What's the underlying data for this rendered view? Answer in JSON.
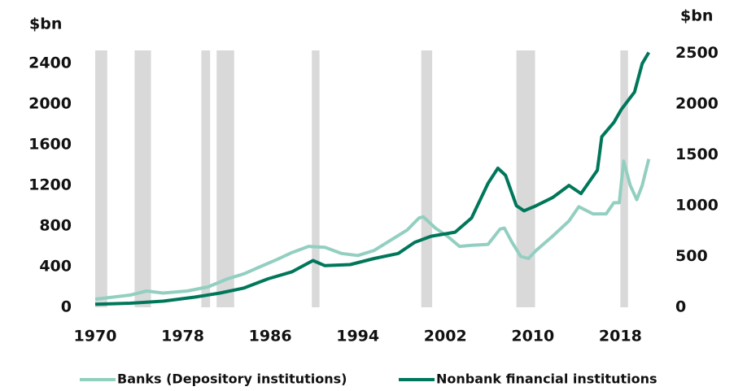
{
  "chart_data": {
    "type": "line",
    "y_label": "$bn",
    "y2_label": "$bn",
    "xlim": [
      1970,
      2020.8
    ],
    "xticks": [
      1970,
      1978,
      1986,
      1994,
      2002,
      2010,
      2018
    ],
    "ylim": [
      0,
      2530
    ],
    "yticks": [
      0,
      400,
      800,
      1200,
      1600,
      2000,
      2400
    ],
    "y2lim": [
      0,
      2530
    ],
    "y2ticks": [
      0,
      500,
      1000,
      1500,
      2000,
      2500
    ],
    "shaded_periods": [
      [
        1970,
        1971.1
      ],
      [
        1973.6,
        1975.1
      ],
      [
        1979.7,
        1980.5
      ],
      [
        1981.1,
        1982.7
      ],
      [
        1989.8,
        1990.5
      ],
      [
        1999.8,
        2000.8
      ],
      [
        2008.5,
        2010.2
      ],
      [
        2018,
        2018.7
      ]
    ],
    "shade_color": "#d9d9d9",
    "series": [
      {
        "name": "Banks (Depository institutions)",
        "color": "#93cfc0",
        "x": [
          1970,
          1973.2,
          1974.7,
          1976.2,
          1978.4,
          1980.3,
          1982.1,
          1983.6,
          1985.1,
          1986.6,
          1988,
          1989.5,
          1991,
          1992.5,
          1994,
          1995.5,
          1997,
          1998.5,
          1999.6,
          2000,
          2001.1,
          2002.2,
          2003.3,
          2004.4,
          2005.9,
          2007,
          2007.4,
          2008.1,
          2008.9,
          2009.6,
          2010.3,
          2011.8,
          2013.3,
          2014.2,
          2015.5,
          2016.7,
          2017.4,
          2017.9,
          2018.3,
          2018.9,
          2019.5,
          2020,
          2020.6
        ],
        "values": [
          80,
          120,
          160,
          140,
          160,
          200,
          280,
          330,
          400,
          470,
          540,
          600,
          590,
          530,
          510,
          560,
          660,
          760,
          880,
          890,
          780,
          700,
          600,
          610,
          620,
          770,
          780,
          640,
          500,
          480,
          560,
          700,
          850,
          990,
          920,
          920,
          1030,
          1030,
          1440,
          1200,
          1060,
          1200,
          1460
        ]
      },
      {
        "name": "Nonbank financial institutions",
        "color": "#00775a",
        "axis": "y2",
        "x": [
          1970,
          1973.2,
          1976.2,
          1979.1,
          1981.4,
          1983.6,
          1985.8,
          1988,
          1989.9,
          1991,
          1993.3,
          1995.5,
          1997.7,
          1999.2,
          2000.7,
          2001.8,
          2002.9,
          2004.4,
          2005.9,
          2006.8,
          2007.5,
          2008.5,
          2009.2,
          2010.3,
          2011.8,
          2013.3,
          2014.4,
          2015.9,
          2016.3,
          2017.4,
          2018.1,
          2019.3,
          2020,
          2020.6
        ],
        "values": [
          30,
          40,
          60,
          100,
          140,
          190,
          280,
          350,
          460,
          410,
          420,
          480,
          530,
          640,
          700,
          720,
          740,
          880,
          1220,
          1370,
          1300,
          1000,
          950,
          1000,
          1080,
          1200,
          1120,
          1350,
          1680,
          1820,
          1950,
          2120,
          2400,
          2510
        ]
      }
    ]
  }
}
